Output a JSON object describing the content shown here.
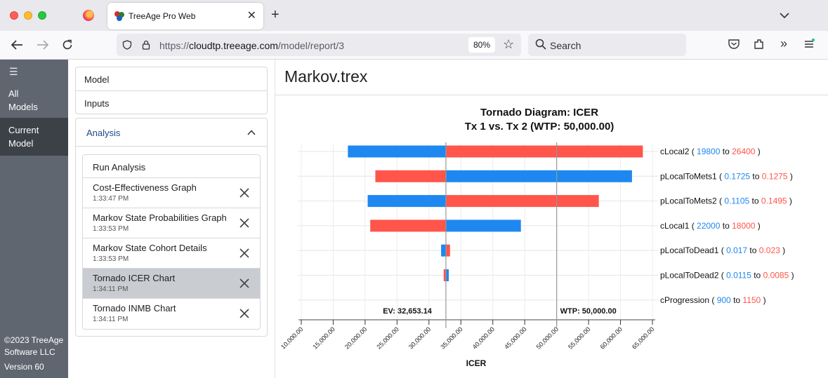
{
  "browser": {
    "tab_title": "TreeAge Pro Web",
    "url_scheme": "https://",
    "url_host": "cloudtp.treeage.com",
    "url_path": "/model/report/3",
    "zoom": "80%",
    "search_placeholder": "Search"
  },
  "sidebar": {
    "items": [
      {
        "label1": "All",
        "label2": "Models"
      },
      {
        "label1": "Current",
        "label2": "Model"
      }
    ],
    "copyright1": "©2023 TreeAge",
    "copyright2": "Software LLC",
    "version": "Version 60"
  },
  "panel": {
    "model_label": "Model",
    "inputs_label": "Inputs",
    "analysis_label": "Analysis",
    "run_label": "Run Analysis",
    "items": [
      {
        "title": "Cost-Effectiveness Graph",
        "time": "1:33:47 PM"
      },
      {
        "title": "Markov State Probabilities Graph",
        "time": "1:33:53 PM"
      },
      {
        "title": "Markov State Cohort Details",
        "time": "1:33:53 PM"
      },
      {
        "title": "Tornado ICER Chart",
        "time": "1:34:11 PM"
      },
      {
        "title": "Tornado INMB Chart",
        "time": "1:34:11 PM"
      }
    ]
  },
  "content": {
    "model_title": "Markov.trex"
  },
  "colors": {
    "low_bar": "#1e88f0",
    "high_bar": "#ff554b",
    "sidebar": "#5f6670",
    "sidebar_active": "#3c4148",
    "selected_item": "#c9ccd0"
  },
  "chart_data": {
    "type": "tornado",
    "title": "Tornado Diagram: ICER",
    "subtitle": "Tx 1 vs. Tx 2 (WTP: 50,000.00)",
    "xlabel": "ICER",
    "xlim": [
      10000,
      65000
    ],
    "xticks": [
      10000,
      15000,
      20000,
      25000,
      30000,
      35000,
      40000,
      45000,
      50000,
      55000,
      60000,
      65000
    ],
    "xtick_labels": [
      "10,000.00",
      "15,000.00",
      "20,000.00",
      "25,000.00",
      "30,000.00",
      "35,000.00",
      "40,000.00",
      "45,000.00",
      "50,000.00",
      "55,000.00",
      "60,000.00",
      "65,000.00"
    ],
    "ev": 32653.14,
    "ev_label": "EV: 32,653.14",
    "wtp": 50000,
    "wtp_label": "WTP: 50,000.00",
    "rows": [
      {
        "name": "cLocal2",
        "low_label": "19800",
        "high_label": "26400",
        "blue_end": 17300,
        "red_end": 63500,
        "blue_first": true
      },
      {
        "name": "pLocalToMets1",
        "low_label": "0.1725",
        "high_label": "0.1275",
        "blue_end": 61800,
        "red_end": 21600,
        "blue_first": false
      },
      {
        "name": "pLocalToMets2",
        "low_label": "0.1105",
        "high_label": "0.1495",
        "blue_end": 20400,
        "red_end": 56600,
        "blue_first": true
      },
      {
        "name": "cLocal1",
        "low_label": "22000",
        "high_label": "18000",
        "blue_end": 44400,
        "red_end": 20800,
        "blue_first": false
      },
      {
        "name": "pLocalToDead1",
        "low_label": "0.017",
        "high_label": "0.023",
        "blue_end": 31900,
        "red_end": 33300,
        "blue_first": true
      },
      {
        "name": "pLocalToDead2",
        "low_label": "0.0115",
        "high_label": "0.0085",
        "blue_end": 33100,
        "red_end": 32300,
        "blue_first": false
      },
      {
        "name": "cProgression",
        "low_label": "900",
        "high_label": "1150",
        "blue_end": 32653.14,
        "red_end": 32653.14,
        "blue_first": true
      }
    ]
  }
}
